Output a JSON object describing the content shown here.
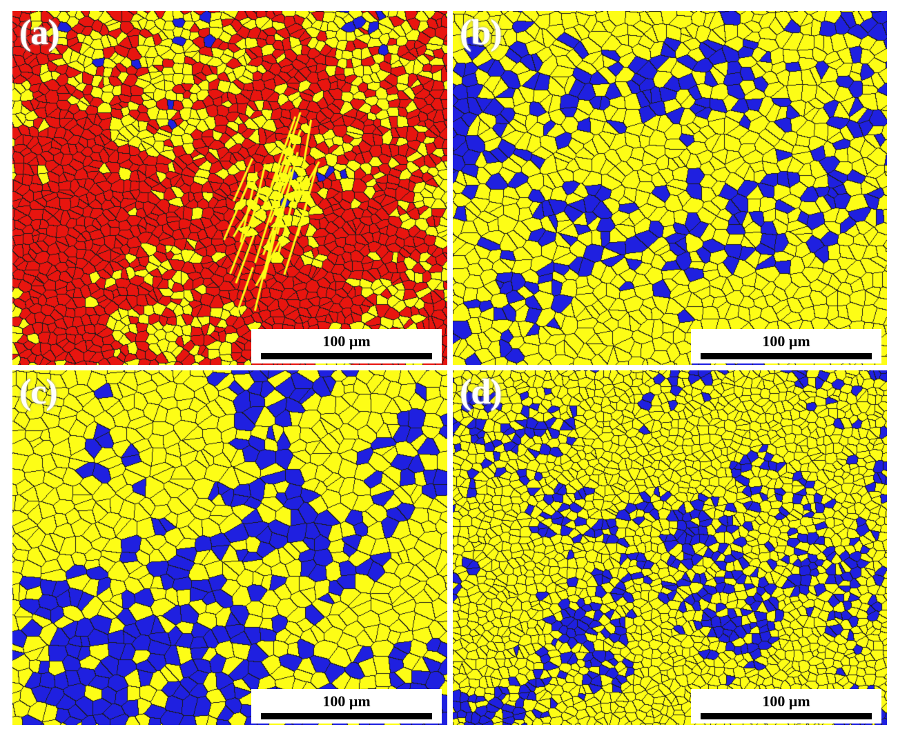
{
  "colors": {
    "red": "#e8150f",
    "blue": "#1f20e0",
    "yellow": "#fdfd16",
    "grain_boundary": "#1a1a1a",
    "background": "#ffffff"
  },
  "panels": [
    {
      "label": "(a)",
      "scale_bar": "100 μm",
      "phase_fractions": {
        "red": 0.58,
        "yellow": 0.28,
        "blue": 0.14
      },
      "texture": "fine mixed grains with elongated lath features"
    },
    {
      "label": "(b)",
      "scale_bar": "100 μm",
      "phase_fractions": {
        "red": 0.04,
        "yellow": 0.62,
        "blue": 0.34
      }
    },
    {
      "label": "(c)",
      "scale_bar": "100 μm",
      "phase_fractions": {
        "red": 0.03,
        "yellow": 0.6,
        "blue": 0.37
      }
    },
    {
      "label": "(d)",
      "scale_bar": "100 μm",
      "phase_fractions": {
        "red": 0.03,
        "yellow": 0.63,
        "blue": 0.34
      }
    }
  ]
}
